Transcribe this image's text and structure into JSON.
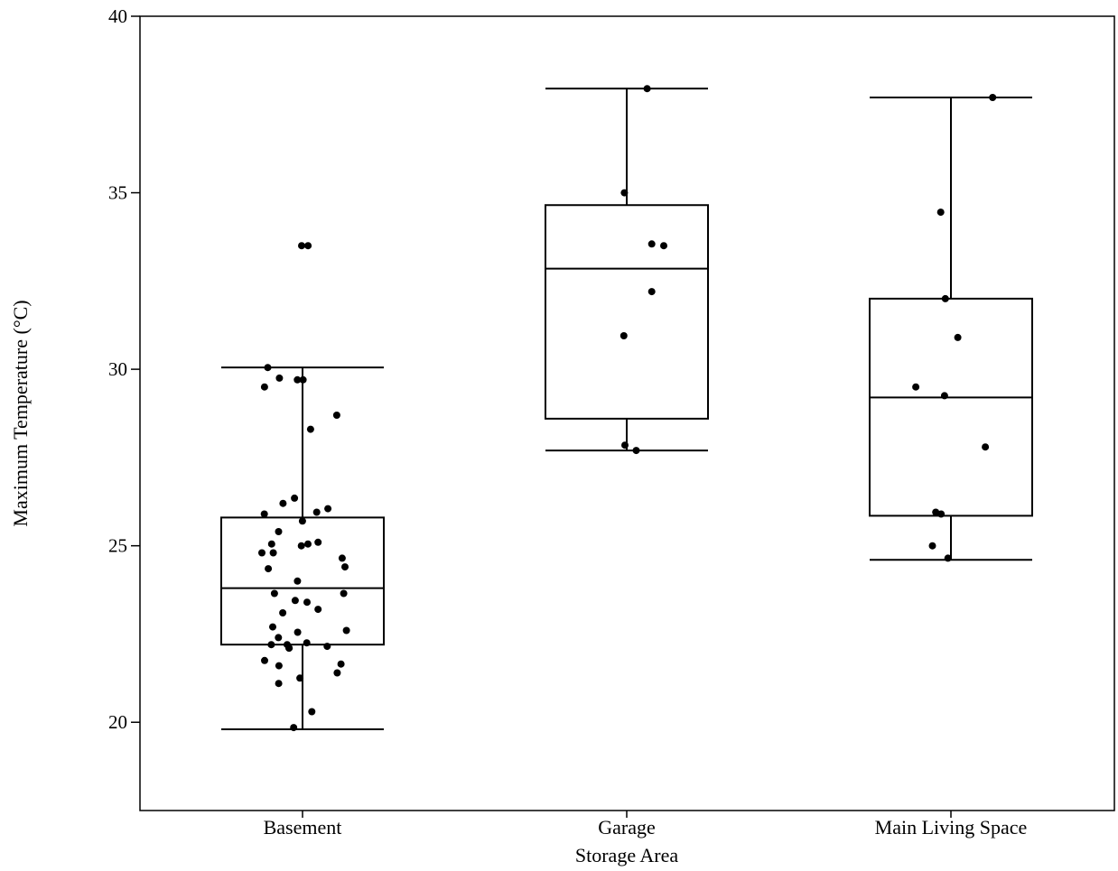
{
  "chart_data": {
    "type": "box",
    "xlabel": "Storage Area",
    "ylabel": "Maximum Temperature (°C)",
    "ylim": [
      17.5,
      40
    ],
    "yticks": [
      20,
      25,
      30,
      35,
      40
    ],
    "grid": false,
    "categories": [
      "Basement",
      "Garage",
      "Main Living Space"
    ],
    "boxes": [
      {
        "name": "Basement",
        "whisker_low": 19.8,
        "q1": 22.2,
        "median": 23.8,
        "q3": 25.8,
        "whisker_high": 30.05,
        "points": [
          33.5,
          33.5,
          30.05,
          29.75,
          29.7,
          29.7,
          29.5,
          28.7,
          28.3,
          26.35,
          26.2,
          26.05,
          25.95,
          25.9,
          25.7,
          25.4,
          25.1,
          25.05,
          25.05,
          25.0,
          24.8,
          24.8,
          24.65,
          24.4,
          24.35,
          24.0,
          23.65,
          23.65,
          23.45,
          23.4,
          23.2,
          23.1,
          22.7,
          22.6,
          22.55,
          22.4,
          22.25,
          22.2,
          22.2,
          22.15,
          22.1,
          22.1,
          21.75,
          21.65,
          21.6,
          21.4,
          21.25,
          21.1,
          20.3,
          19.85
        ]
      },
      {
        "name": "Garage",
        "whisker_low": 27.7,
        "q1": 28.6,
        "median": 32.85,
        "q3": 34.65,
        "whisker_high": 37.95,
        "points": [
          37.95,
          35.0,
          33.55,
          33.5,
          32.2,
          30.95,
          27.85,
          27.7
        ]
      },
      {
        "name": "Main Living Space",
        "whisker_low": 24.6,
        "q1": 25.85,
        "median": 29.2,
        "q3": 32.0,
        "whisker_high": 37.7,
        "points": [
          37.7,
          34.45,
          32.0,
          30.9,
          29.5,
          29.25,
          27.8,
          25.95,
          25.9,
          25.0,
          24.65
        ]
      }
    ]
  }
}
